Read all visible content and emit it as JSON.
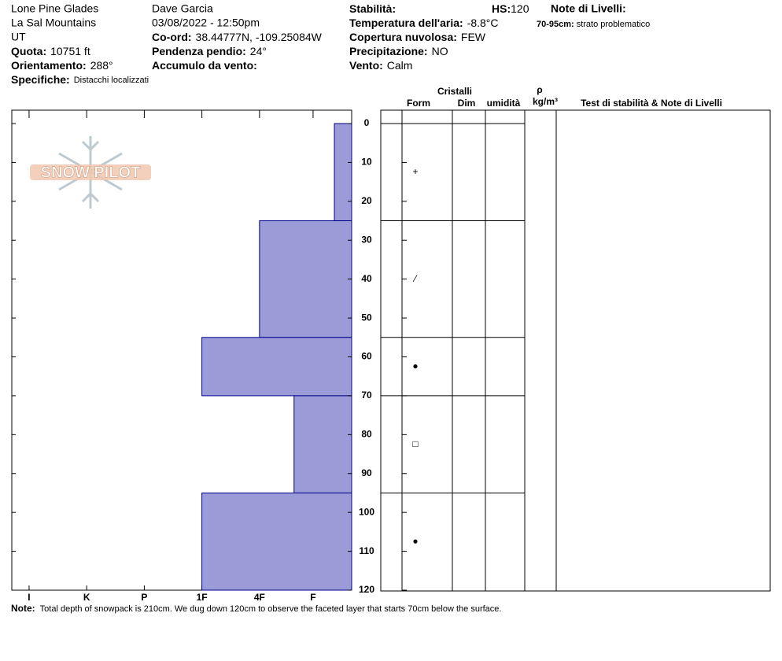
{
  "header": {
    "location": "Lone Pine Glades",
    "range": "La Sal Mountains",
    "state": "UT",
    "elevation": {
      "label": "Quota:",
      "value": "10751 ft"
    },
    "aspect": {
      "label": "Orientamento:",
      "value": "288°"
    },
    "specifics": {
      "label": "Specifiche:",
      "value": "Distacchi localizzati"
    },
    "observer": "Dave Garcia",
    "datetime": "03/08/2022 - 12:50pm",
    "coords": {
      "label": "Co-ord:",
      "value": "38.44777N, -109.25084W"
    },
    "slope": {
      "label": "Pendenza pendio:",
      "value": "24°"
    },
    "wind_loading": {
      "label": "Accumulo da vento:"
    },
    "stability": {
      "label": "Stabilità:"
    },
    "hs": {
      "label": "HS:",
      "value": 120
    },
    "air_temp": {
      "label": "Temperatura dell'aria:",
      "value": "-8.8°C"
    },
    "sky": {
      "label": "Copertura nuvolosa:",
      "value": "FEW"
    },
    "precip": {
      "label": "Precipitazione:",
      "value": "NO"
    },
    "wind": {
      "label": "Vento:",
      "value": "Calm"
    },
    "layer_notes": {
      "label": "Note di Livelli:",
      "items": [
        {
          "range": "70-95cm:",
          "text": "strato problematico"
        }
      ]
    }
  },
  "logo": "SNOW PILOT",
  "chart_data": {
    "type": "snow-profile",
    "ylim": [
      0,
      120
    ],
    "yticks": [
      0,
      10,
      20,
      30,
      40,
      50,
      60,
      70,
      80,
      90,
      100,
      110,
      120
    ],
    "xlim": [
      0,
      5.9
    ],
    "xticks": [
      {
        "value": 5.6,
        "label": "I"
      },
      {
        "value": 4.6,
        "label": "K"
      },
      {
        "value": 3.6,
        "label": "P"
      },
      {
        "value": 2.6,
        "label": "1F"
      },
      {
        "value": 1.6,
        "label": "4F"
      },
      {
        "value": 0.67,
        "label": "F"
      }
    ],
    "color": "#9b9bd8",
    "layers": {
      "top": [
        0,
        25,
        55,
        70,
        95
      ],
      "bottom": [
        25,
        55,
        70,
        95,
        120
      ],
      "hardness": [
        0.3,
        1.6,
        2.6,
        1,
        2.6
      ],
      "form": [
        "+",
        "⁄",
        "●",
        "□",
        "●"
      ]
    },
    "columns": {
      "crystals": "Cristalli",
      "form": "Form",
      "size": "Dim",
      "moisture": "umidità",
      "rho": "ρ",
      "density_unit": "kg/m³",
      "notes": "Test di stabilità & Note di Livelli"
    },
    "note": {
      "label": "Note:",
      "text": "Total depth of snowpack is 210cm. We dug down 120cm to observe the faceted layer that starts 70cm below the surface."
    }
  }
}
